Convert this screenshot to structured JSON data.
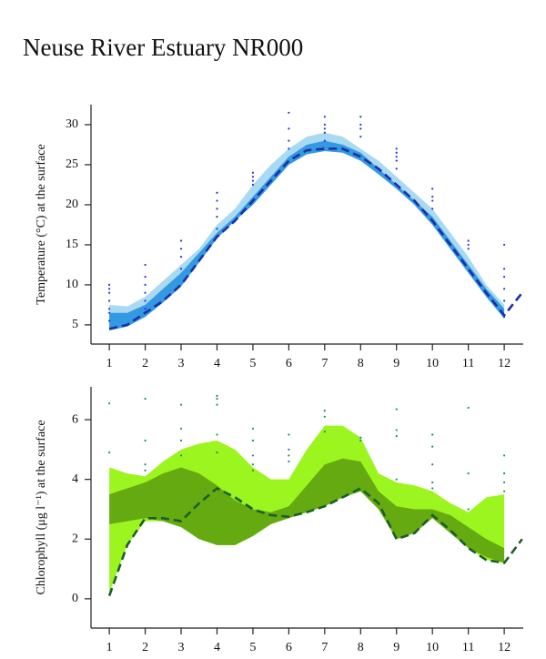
{
  "title": "Neuse River Estuary NR000",
  "chart_data": [
    {
      "type": "line",
      "ylabel": "Temperature (°C) at the surface",
      "xlim": [
        0.49,
        12.53
      ],
      "ylim": [
        2.6,
        32.5
      ],
      "xticks": [
        1,
        2,
        3,
        4,
        5,
        6,
        7,
        8,
        9,
        10,
        11,
        12
      ],
      "yticks": [
        5,
        10,
        15,
        20,
        25,
        30
      ],
      "x": [
        1,
        1.5,
        2,
        2.5,
        3,
        3.5,
        4,
        4.5,
        5,
        5.5,
        6,
        6.5,
        7,
        7.5,
        8,
        8.5,
        9,
        9.5,
        10,
        10.5,
        11,
        11.5,
        12,
        12.5
      ],
      "series": [
        {
          "type": "band",
          "color": "#aad9f2",
          "upper": [
            7.5,
            7.3,
            8.5,
            10.5,
            12.5,
            14.5,
            17.5,
            19.5,
            22.5,
            25,
            27,
            28.5,
            29,
            28.5,
            27,
            25.5,
            23.5,
            21.5,
            19.5,
            16.5,
            13.5,
            10,
            7.5,
            null
          ],
          "lower": [
            4.3,
            4.8,
            6,
            7.8,
            9.8,
            12.8,
            15.8,
            18,
            20,
            22.5,
            25,
            26.3,
            26.7,
            26.5,
            25.5,
            23.8,
            22,
            20,
            17.5,
            14.5,
            11.5,
            8.5,
            5.8,
            null
          ]
        },
        {
          "type": "band",
          "color": "#3399e0",
          "upper": [
            6.5,
            6.5,
            7.5,
            9.5,
            11.5,
            14,
            16.5,
            18.5,
            21,
            23.5,
            26,
            27.5,
            28,
            27.5,
            26.5,
            24.5,
            22.5,
            20.5,
            18.5,
            15.5,
            12.5,
            9.5,
            7,
            null
          ],
          "lower": [
            4.3,
            4.8,
            6,
            7.8,
            9.8,
            12.8,
            15.8,
            18,
            20,
            22.5,
            25,
            26.3,
            26.7,
            26.5,
            25.5,
            23.8,
            22,
            20,
            17.5,
            14.5,
            11.5,
            8.5,
            5.8,
            null
          ]
        },
        {
          "type": "line",
          "color": "#1a2fa8",
          "dash": true,
          "values": [
            4.5,
            5,
            6.5,
            8,
            10,
            13,
            16,
            18,
            20.5,
            23,
            25.5,
            26.8,
            27,
            27,
            26,
            24.5,
            22.5,
            20.5,
            18,
            15,
            12,
            9,
            6.2,
            9
          ]
        },
        {
          "type": "scatter",
          "color": "#2233dd",
          "x": [
            1,
            1,
            1,
            1,
            1,
            1,
            1,
            2,
            2,
            2,
            2,
            2,
            2,
            3,
            3,
            3,
            3,
            4,
            4,
            4,
            4,
            4,
            5,
            5,
            5,
            5,
            6,
            6,
            6,
            6,
            7,
            7,
            7,
            7,
            7,
            8,
            8,
            8,
            8,
            9,
            9,
            9,
            9,
            9,
            10,
            10,
            10,
            10,
            11,
            11,
            11,
            12,
            12,
            12,
            12,
            12,
            12
          ],
          "values": [
            5.5,
            6.5,
            7,
            8,
            9,
            9.5,
            10,
            7,
            8,
            9,
            10,
            11,
            12.5,
            12,
            13.5,
            14.5,
            15.5,
            17,
            18.5,
            19.5,
            20.5,
            21.5,
            22.5,
            23,
            23.5,
            24,
            27,
            28,
            29.5,
            31.5,
            28,
            29,
            29.5,
            30,
            31,
            28.5,
            29.5,
            30,
            31,
            24.5,
            25.5,
            26,
            26.5,
            27,
            19.5,
            20.5,
            21,
            22,
            14.5,
            15,
            15.5,
            6,
            8,
            9.5,
            11,
            12,
            15
          ]
        }
      ]
    },
    {
      "type": "line",
      "ylabel": "Chlorophyll (μg l⁻¹) at the surface",
      "xlim": [
        0.49,
        12.53
      ],
      "ylim": [
        -0.98,
        7.1
      ],
      "xticks": [
        1,
        2,
        3,
        4,
        5,
        6,
        7,
        8,
        9,
        10,
        11,
        12
      ],
      "yticks": [
        0,
        2,
        4,
        6
      ],
      "x": [
        1,
        1.5,
        2,
        2.5,
        3,
        3.5,
        4,
        4.5,
        5,
        5.5,
        6,
        6.5,
        7,
        7.5,
        8,
        8.5,
        9,
        9.5,
        10,
        10.5,
        11,
        11.5,
        12,
        12.5
      ],
      "series": [
        {
          "type": "band",
          "color": "#9cf51e",
          "upper": [
            4.4,
            4.2,
            4.1,
            4.6,
            5.0,
            5.2,
            5.3,
            5.0,
            4.4,
            4.0,
            4.0,
            5.0,
            5.8,
            5.8,
            5.4,
            4.2,
            3.9,
            3.8,
            3.6,
            3.2,
            2.9,
            3.4,
            3.5,
            null
          ],
          "lower": [
            0.2,
            1.8,
            2.6,
            2.6,
            2.4,
            2.0,
            1.8,
            1.8,
            2.1,
            2.5,
            2.7,
            2.9,
            3.1,
            3.4,
            3.6,
            3.0,
            2.0,
            2.2,
            2.7,
            2.2,
            1.7,
            1.3,
            1.2,
            null
          ]
        },
        {
          "type": "band",
          "color": "#66aa11",
          "upper": [
            3.5,
            3.7,
            3.9,
            4.2,
            4.4,
            4.2,
            3.8,
            3.3,
            3.0,
            2.9,
            3.1,
            3.8,
            4.5,
            4.7,
            4.6,
            3.6,
            3.1,
            3.0,
            3.0,
            2.8,
            2.4,
            2.0,
            1.7,
            null
          ],
          "lower": [
            2.5,
            2.6,
            2.7,
            2.6,
            2.4,
            2.0,
            1.8,
            1.8,
            2.1,
            2.5,
            2.7,
            2.9,
            3.1,
            3.4,
            3.6,
            3.0,
            2.0,
            2.2,
            2.7,
            2.2,
            1.7,
            1.4,
            1.2,
            null
          ]
        },
        {
          "type": "line",
          "color": "#1a5e2a",
          "dash": true,
          "values": [
            0.1,
            1.8,
            2.7,
            2.7,
            2.6,
            3.2,
            3.7,
            3.4,
            3.0,
            2.8,
            2.75,
            2.9,
            3.1,
            3.4,
            3.7,
            3.2,
            2.0,
            2.2,
            2.8,
            2.3,
            1.7,
            1.3,
            1.2,
            2.0
          ]
        },
        {
          "type": "scatter",
          "color": "#228877",
          "x": [
            1,
            1,
            2,
            2,
            2,
            2,
            3,
            3,
            3,
            3,
            4,
            4,
            4,
            4,
            4,
            5,
            5,
            5,
            5,
            5,
            6,
            6,
            6,
            6,
            7,
            7,
            7,
            8,
            8,
            9,
            9,
            9,
            9,
            10,
            10,
            10,
            10,
            10,
            11,
            11,
            11,
            12,
            12,
            12,
            12
          ],
          "values": [
            6.55,
            4.9,
            6.7,
            5.3,
            4.5,
            4.3,
            6.5,
            5.7,
            5.3,
            4.8,
            6.8,
            6.7,
            6.5,
            5.5,
            4.9,
            5.7,
            5.3,
            4.8,
            4.5,
            4.3,
            5.5,
            5.0,
            4.8,
            4.6,
            6.3,
            6.1,
            5.6,
            5.4,
            5.3,
            6.35,
            5.65,
            5.45,
            4.0,
            5.5,
            5.1,
            4.5,
            3.9,
            3.7,
            6.4,
            4.2,
            3.0,
            4.8,
            4.2,
            3.9,
            3.6
          ]
        }
      ]
    }
  ]
}
